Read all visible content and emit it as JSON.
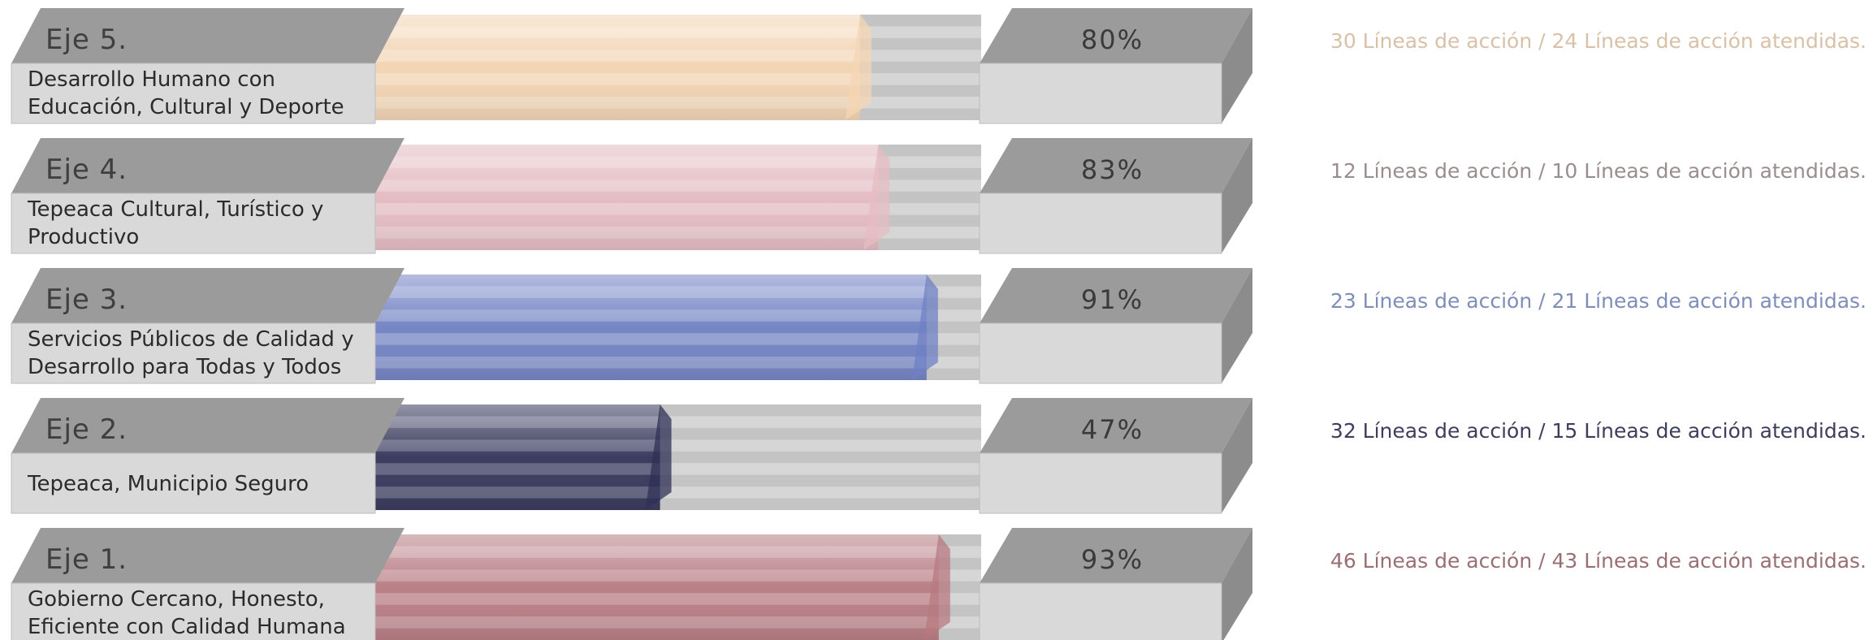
{
  "chart_data": {
    "type": "bar",
    "orientation": "horizontal",
    "xlim": [
      0,
      100
    ],
    "unit": "%",
    "rows": [
      {
        "axis": "Eje 5.",
        "desc": [
          "Desarrollo Humano con",
          "Educación, Cultural y Deporte"
        ],
        "value": 80,
        "label": "80%",
        "note": "30 Líneas de acción / 24 Líneas de acción atendidas.",
        "color": "#f5d6b3",
        "note_color": "#d9c1a8"
      },
      {
        "axis": "Eje 4.",
        "desc": [
          "Tepeaca Cultural, Turístico y",
          "Productivo"
        ],
        "value": 83,
        "label": "83%",
        "note": "12 Líneas de acción / 10 Líneas de acción atendidas.",
        "color": "#e6bcc2",
        "note_color": "#9a8d8d"
      },
      {
        "axis": "Eje 3.",
        "desc": [
          "Servicios Públicos de Calidad y",
          "Desarrollo para Todas y Todos"
        ],
        "value": 91,
        "label": "91%",
        "note": "23 Líneas de acción / 21 Líneas de acción atendidas.",
        "color": "#6f80c4",
        "note_color": "#7f8dba"
      },
      {
        "axis": "Eje 2.",
        "desc": [
          "Tepeaca, Municipio Seguro"
        ],
        "value": 47,
        "label": "47%",
        "note": "32 Líneas de acción / 15 Líneas de acción atendidas.",
        "color": "#2f3056",
        "note_color": "#3d3e5c"
      },
      {
        "axis": "Eje 1.",
        "desc": [
          "Gobierno Cercano, Honesto,",
          "Eficiente con Calidad Humana"
        ],
        "value": 93,
        "label": "93%",
        "note": "46 Líneas de acción / 43 Líneas de acción atendidas.",
        "color": "#b77a80",
        "note_color": "#9a6f73"
      }
    ]
  }
}
